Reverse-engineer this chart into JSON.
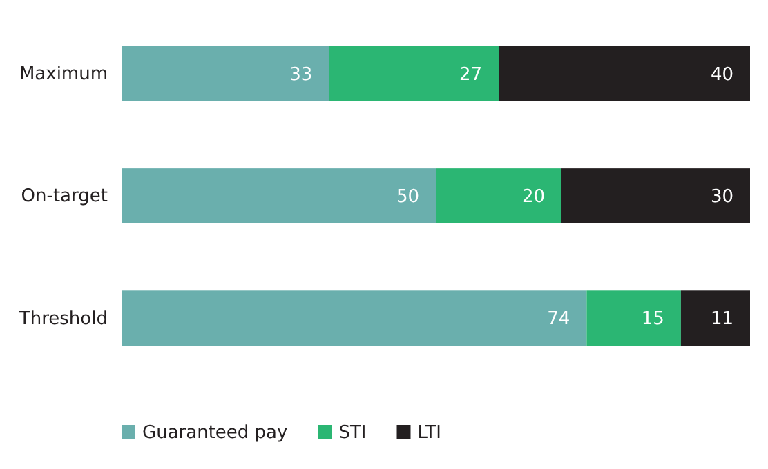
{
  "chart_data": {
    "type": "bar",
    "orientation": "horizontal",
    "stacked": true,
    "categories": [
      "Maximum",
      "On-target",
      "Threshold"
    ],
    "series": [
      {
        "name": "Guaranteed pay",
        "color": "#6aafad",
        "values": [
          33,
          50,
          74
        ]
      },
      {
        "name": "STI",
        "color": "#2bb673",
        "values": [
          27,
          20,
          15
        ]
      },
      {
        "name": "LTI",
        "color": "#231f20",
        "values": [
          40,
          30,
          11
        ]
      }
    ],
    "xlim": [
      0,
      100
    ],
    "data_labels": true,
    "legend": "bottom left",
    "tick_labels": "y"
  }
}
